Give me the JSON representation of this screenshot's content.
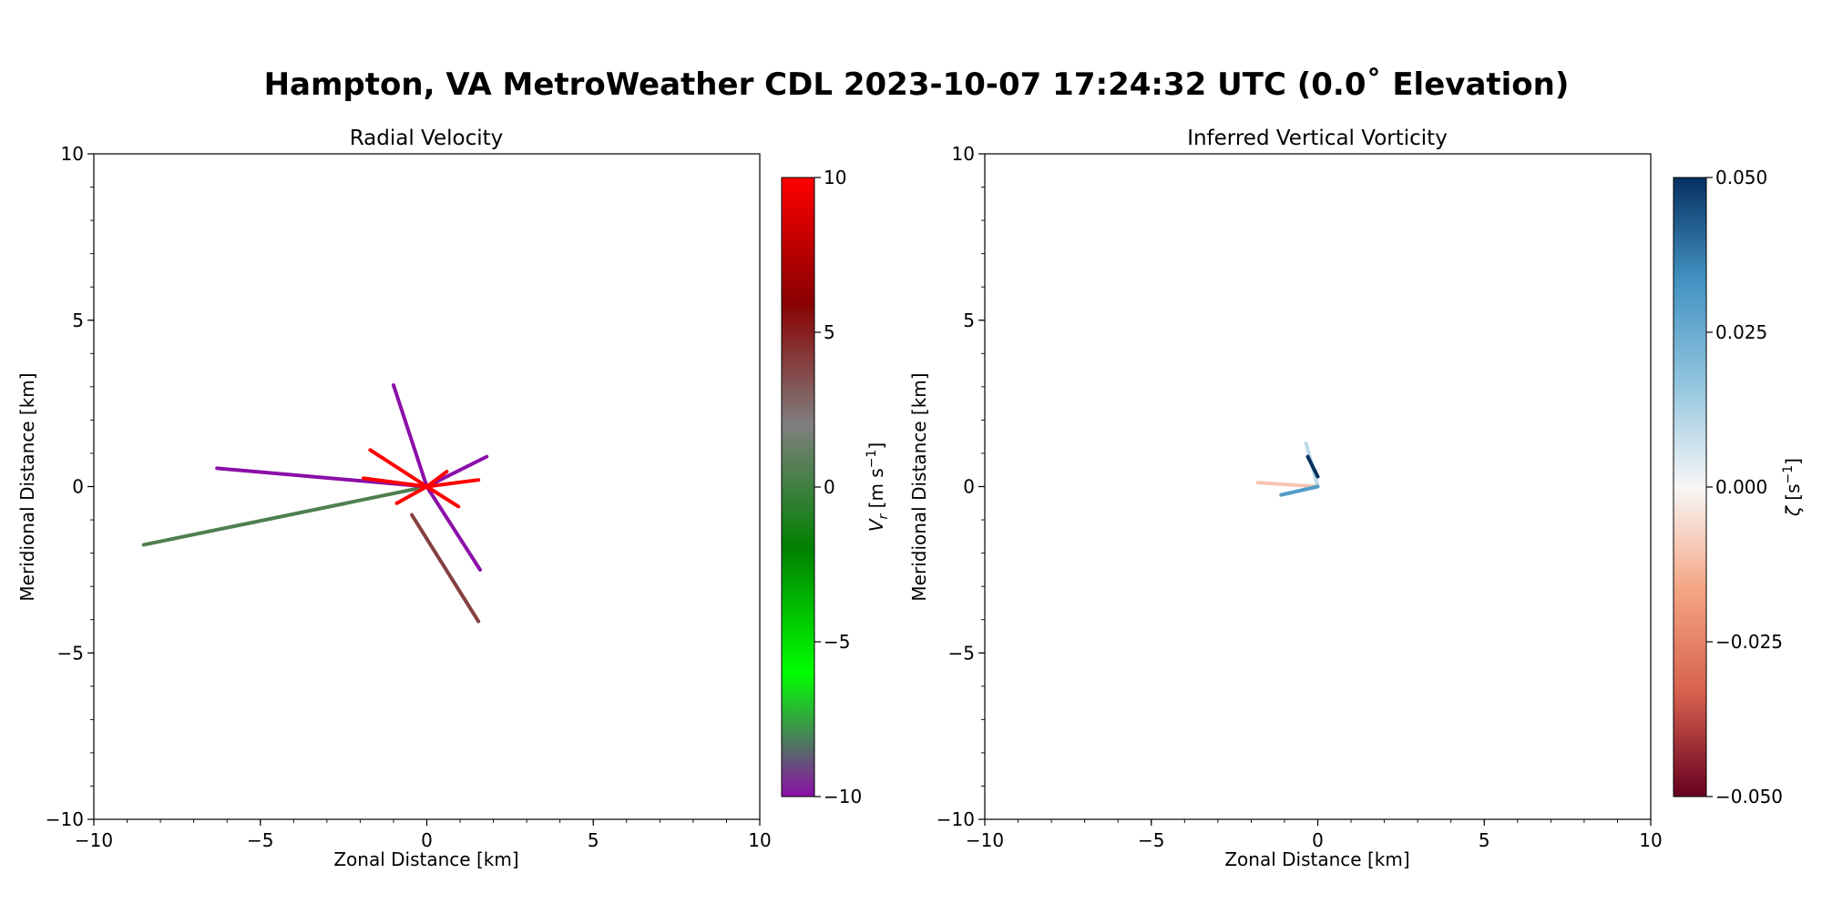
{
  "figure": {
    "suptitle": "Hampton, VA MetroWeather CDL 2023-10-07 17:24:32 UTC (0.0˚ Elevation)"
  },
  "chart_data": [
    {
      "type": "scatter",
      "title": "Radial Velocity",
      "xlabel": "Zonal Distance [km]",
      "ylabel": "Meridional Distance [km]",
      "xlim": [
        -10,
        10
      ],
      "ylim": [
        -10,
        10
      ],
      "xticks": [
        "−10",
        "−5",
        "0",
        "5",
        "10"
      ],
      "yticks": [
        "−10",
        "−5",
        "0",
        "5",
        "10"
      ],
      "grid": false,
      "colorbar": {
        "label": "V_r [m s⁻¹]",
        "label_var": "V",
        "label_sub": "r",
        "label_units": "[m s",
        "label_exp": "−1",
        "label_close": "]",
        "range": [
          -10,
          10
        ],
        "ticks": [
          "10",
          "5",
          "0",
          "−5",
          "−10"
        ],
        "colormap": [
          "#8b0fa8",
          "#00ff00",
          "#008000",
          "#7f7f7f",
          "#8b0000",
          "#ff0000"
        ]
      },
      "rays": [
        {
          "from": [
            0,
            0
          ],
          "to": [
            -8.5,
            -1.75
          ],
          "value": 0.5
        },
        {
          "from": [
            0,
            0
          ],
          "to": [
            -6.3,
            0.55
          ],
          "value": -10
        },
        {
          "from": [
            0,
            0
          ],
          "to": [
            -1.0,
            3.05
          ],
          "value": -10
        },
        {
          "from": [
            0,
            0
          ],
          "to": [
            1.6,
            -2.5
          ],
          "value": -10
        },
        {
          "from": [
            0,
            0
          ],
          "to": [
            1.8,
            0.9
          ],
          "value": -10
        },
        {
          "from": [
            -0.45,
            -0.85
          ],
          "to": [
            1.55,
            -4.05
          ],
          "value": 4
        },
        {
          "from": [
            0,
            0
          ],
          "to": [
            -1.7,
            1.1
          ],
          "value": 10
        },
        {
          "from": [
            0,
            0
          ],
          "to": [
            1.55,
            0.2
          ],
          "value": 10
        },
        {
          "from": [
            0,
            0
          ],
          "to": [
            0.95,
            -0.6
          ],
          "value": 10
        },
        {
          "from": [
            0,
            0
          ],
          "to": [
            -0.9,
            -0.5
          ],
          "value": 10
        },
        {
          "from": [
            0,
            0
          ],
          "to": [
            -1.9,
            0.25
          ],
          "value": 10
        },
        {
          "from": [
            0,
            0
          ],
          "to": [
            0.6,
            0.45
          ],
          "value": 10
        }
      ]
    },
    {
      "type": "scatter",
      "title": "Inferred Vertical Vorticity",
      "xlabel": "Zonal Distance [km]",
      "ylabel": "Meridional Distance [km]",
      "xlim": [
        -10,
        10
      ],
      "ylim": [
        -10,
        10
      ],
      "xticks": [
        "−10",
        "−5",
        "0",
        "5",
        "10"
      ],
      "yticks": [
        "−10",
        "−5",
        "0",
        "5",
        "10"
      ],
      "grid": false,
      "colorbar": {
        "label": "ζ [s⁻¹]",
        "label_var": "ζ",
        "label_units": "[s",
        "label_exp": "−1",
        "label_close": "]",
        "range": [
          -0.05,
          0.05
        ],
        "ticks": [
          "0.050",
          "0.025",
          "0.000",
          "−0.025",
          "−0.050"
        ],
        "colormap": [
          "#67001f",
          "#d6604d",
          "#f4a582",
          "#f7f7f7",
          "#92c5de",
          "#4393c3",
          "#053061"
        ]
      },
      "rays": [
        {
          "from": [
            0,
            0
          ],
          "to": [
            -0.35,
            1.3
          ],
          "value": 0.01
        },
        {
          "from": [
            0,
            0
          ],
          "to": [
            -1.8,
            0.12
          ],
          "value": -0.01
        },
        {
          "from": [
            0,
            0
          ],
          "to": [
            -1.1,
            -0.25
          ],
          "value": 0.03
        },
        {
          "from": [
            -0.3,
            0.9
          ],
          "to": [
            0,
            0.3
          ],
          "value": 0.05
        }
      ]
    }
  ]
}
